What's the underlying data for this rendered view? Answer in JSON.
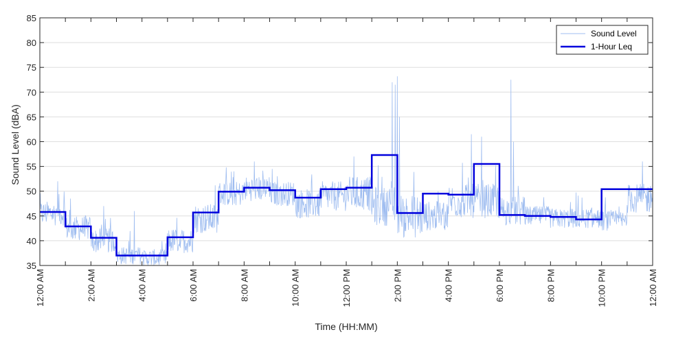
{
  "chart_data": {
    "type": "line",
    "title": "",
    "xlabel": "Time (HH:MM)",
    "ylabel": "Sound Level (dBA)",
    "xlim_hours": [
      0,
      24
    ],
    "ylim": [
      35,
      85
    ],
    "yticks": [
      35,
      40,
      45,
      50,
      55,
      60,
      65,
      70,
      75,
      80,
      85
    ],
    "x_ticks": [
      {
        "hour": 0,
        "label": "12:00 AM"
      },
      {
        "hour": 2,
        "label": "2:00 AM"
      },
      {
        "hour": 4,
        "label": "4:00 AM"
      },
      {
        "hour": 6,
        "label": "6:00 AM"
      },
      {
        "hour": 8,
        "label": "8:00 AM"
      },
      {
        "hour": 10,
        "label": "10:00 AM"
      },
      {
        "hour": 12,
        "label": "12:00 PM"
      },
      {
        "hour": 14,
        "label": "2:00 PM"
      },
      {
        "hour": 16,
        "label": "4:00 PM"
      },
      {
        "hour": 18,
        "label": "6:00 PM"
      },
      {
        "hour": 20,
        "label": "8:00 PM"
      },
      {
        "hour": 22,
        "label": "10:00 PM"
      },
      {
        "hour": 24,
        "label": "12:00 AM"
      }
    ],
    "grid": "horizontal",
    "legend_position": "top-right",
    "colors": {
      "sound_level": "#9fbdf0",
      "leq": "#0000dd",
      "grid": "#dedede",
      "axis": "#262626"
    },
    "series": [
      {
        "name": "Sound Level",
        "style": "thin-light-line",
        "hourly_mean": [
          45.5,
          42.5,
          40.0,
          37.0,
          36.5,
          40.0,
          44.5,
          49.5,
          50.5,
          49.5,
          47.5,
          49.0,
          49.5,
          47.0,
          45.0,
          45.0,
          48.0,
          48.0,
          46.0,
          45.0,
          44.5,
          44.5,
          44.0,
          48.5
        ],
        "hourly_spread": [
          2.5,
          2.5,
          2.5,
          1.8,
          1.8,
          2.5,
          3.0,
          2.5,
          2.5,
          2.5,
          3.0,
          3.0,
          3.5,
          4.0,
          4.5,
          3.0,
          3.5,
          3.5,
          3.0,
          2.0,
          2.0,
          2.0,
          2.0,
          3.0
        ],
        "peaks": [
          {
            "hour": 0.7,
            "value": 52
          },
          {
            "hour": 1.2,
            "value": 48.5
          },
          {
            "hour": 2.5,
            "value": 47
          },
          {
            "hour": 3.7,
            "value": 46
          },
          {
            "hour": 7.6,
            "value": 54
          },
          {
            "hour": 8.4,
            "value": 56
          },
          {
            "hour": 9.1,
            "value": 54.5
          },
          {
            "hour": 12.3,
            "value": 57
          },
          {
            "hour": 13.8,
            "value": 72
          },
          {
            "hour": 13.92,
            "value": 71.5
          },
          {
            "hour": 14.0,
            "value": 73.2
          },
          {
            "hour": 14.08,
            "value": 65
          },
          {
            "hour": 16.9,
            "value": 61.5
          },
          {
            "hour": 17.3,
            "value": 61
          },
          {
            "hour": 18.45,
            "value": 72.5
          },
          {
            "hour": 18.55,
            "value": 60
          },
          {
            "hour": 23.6,
            "value": 56
          }
        ]
      },
      {
        "name": "1-Hour Leq",
        "style": "step",
        "hours": [
          0,
          1,
          2,
          3,
          4,
          5,
          6,
          7,
          8,
          9,
          10,
          11,
          12,
          13,
          14,
          15,
          16,
          17,
          18,
          19,
          20,
          21,
          22,
          23
        ],
        "values": [
          45.8,
          42.9,
          40.6,
          37.0,
          37.0,
          40.7,
          45.7,
          49.9,
          50.7,
          50.2,
          48.7,
          50.4,
          50.7,
          57.3,
          45.6,
          49.5,
          49.3,
          55.5,
          45.2,
          45.0,
          44.8,
          44.3,
          50.4,
          50.4
        ]
      }
    ]
  }
}
